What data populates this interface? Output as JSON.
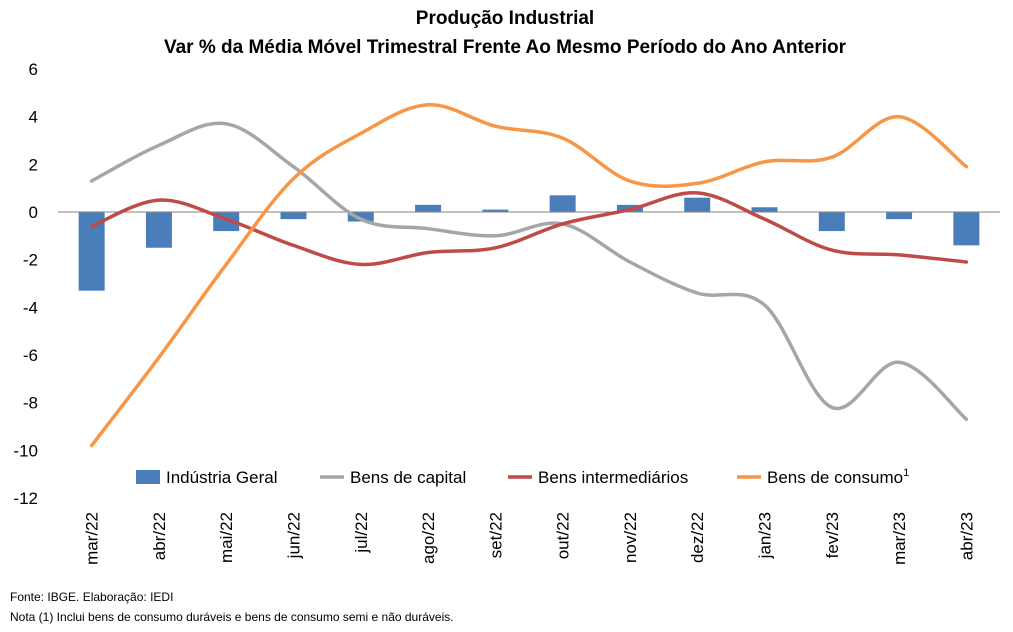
{
  "chart_data": {
    "type": "bar",
    "title": "Produção Industrial",
    "subtitle": "Var % da Média Móvel Trimestral Frente Ao Mesmo Período do Ano Anterior",
    "categories": [
      "mar/22",
      "abr/22",
      "mai/22",
      "jun/22",
      "jul/22",
      "ago/22",
      "set/22",
      "out/22",
      "nov/22",
      "dez/22",
      "jan/23",
      "fev/23",
      "mar/23",
      "abr/23"
    ],
    "ylim": [
      -12,
      6
    ],
    "yticks": [
      6,
      4,
      2,
      0,
      -2,
      -4,
      -6,
      -8,
      -10,
      -12
    ],
    "grid": false,
    "legend_position": "bottom-inside",
    "series": [
      {
        "name": "Indústria Geral",
        "kind": "bar",
        "color": "#4a7ebb",
        "values": [
          -3.3,
          -1.5,
          -0.8,
          -0.3,
          -0.4,
          0.3,
          0.1,
          0.7,
          0.3,
          0.6,
          0.2,
          -0.8,
          -0.3,
          -1.4
        ]
      },
      {
        "name": "Bens de capital",
        "kind": "line",
        "color": "#a6a6a6",
        "values": [
          1.3,
          2.8,
          3.7,
          1.9,
          -0.3,
          -0.7,
          -1.0,
          -0.5,
          -2.1,
          -3.4,
          -3.9,
          -8.2,
          -6.3,
          -8.7
        ]
      },
      {
        "name": "Bens intermediários",
        "kind": "line",
        "color": "#be4b48",
        "values": [
          -0.6,
          0.5,
          -0.3,
          -1.4,
          -2.2,
          -1.7,
          -1.5,
          -0.5,
          0.1,
          0.8,
          -0.3,
          -1.6,
          -1.8,
          -2.1
        ]
      },
      {
        "name": "Bens de consumo",
        "name_superscript": "1",
        "kind": "line",
        "color": "#f79646",
        "values": [
          -9.8,
          -6.1,
          -2.2,
          1.4,
          3.3,
          4.5,
          3.6,
          3.1,
          1.3,
          1.2,
          2.1,
          2.3,
          4.0,
          1.9
        ]
      }
    ]
  },
  "footer": {
    "source": "Fonte: IBGE. Elaboração: IEDI",
    "note": "Nota (1) Inclui bens de consumo duráveis e bens de consumo semi e não duráveis."
  }
}
